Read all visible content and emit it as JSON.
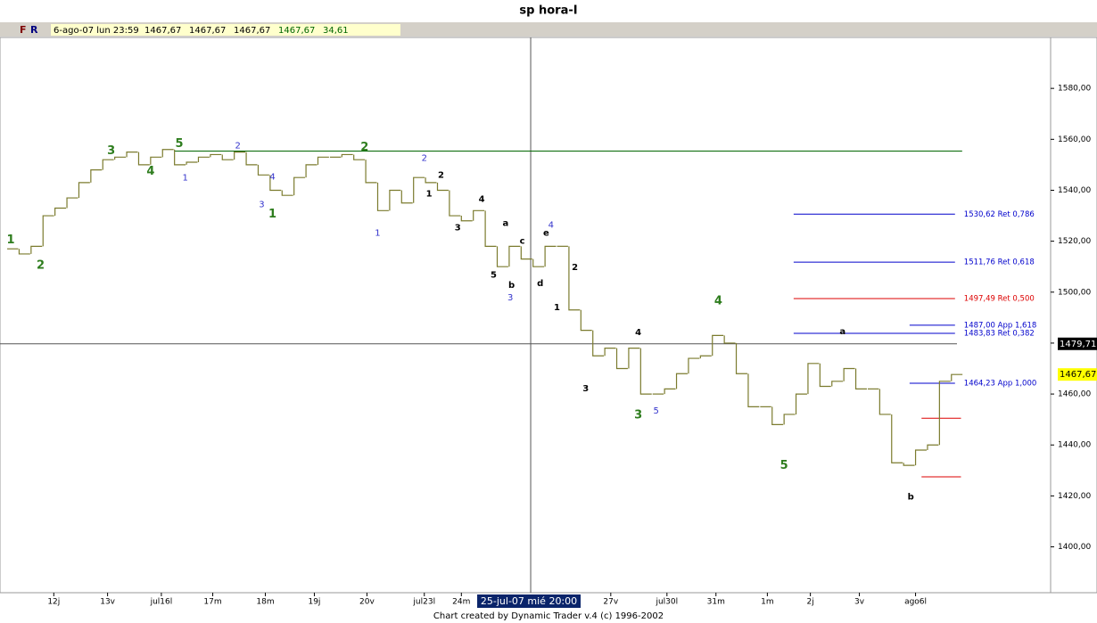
{
  "header": {
    "title": "sp hora-I",
    "buttons": [
      "F",
      "R"
    ],
    "info": [
      "6-ago-07 lun 23:59",
      "1467,67",
      "1467,67",
      "1467,67",
      "1467,67",
      "34,61"
    ]
  },
  "footer": "Chart created by Dynamic Trader v.4  (c) 1996-2002",
  "cursor": {
    "x_label": "25-jul-07 mié 20:00",
    "x": 43.8,
    "y": 1479.71,
    "y_label": "1479,71"
  },
  "chart_data": {
    "type": "step",
    "color": "#7b7b2e",
    "x": [
      0,
      1,
      2,
      3,
      4,
      5,
      6,
      7,
      8,
      9,
      10,
      11,
      12,
      13,
      14,
      15,
      16,
      17,
      18,
      19,
      20,
      21,
      22,
      23,
      24,
      25,
      26,
      27,
      28,
      29,
      30,
      31,
      32,
      33,
      34,
      35,
      36,
      37,
      38,
      39,
      40,
      41,
      42,
      43,
      44,
      45,
      46,
      47,
      48,
      49,
      50,
      51,
      52,
      53,
      54,
      55,
      56,
      57,
      58,
      59,
      60,
      61,
      62,
      63,
      64,
      65,
      66,
      67,
      68,
      69,
      70,
      71,
      72,
      73,
      74,
      75,
      76,
      77,
      78,
      79
    ],
    "values": [
      1517,
      1515,
      1518,
      1530,
      1533,
      1537,
      1543,
      1548,
      1552,
      1553,
      1555,
      1550,
      1553,
      1556,
      1550,
      1551,
      1553,
      1554,
      1552,
      1555,
      1550,
      1546,
      1540,
      1538,
      1545,
      1550,
      1553,
      1553,
      1554,
      1552,
      1543,
      1532,
      1540,
      1535,
      1545,
      1543,
      1540,
      1530,
      1528,
      1532,
      1518,
      1510,
      1518,
      1513,
      1510,
      1518,
      1518,
      1493,
      1485,
      1475,
      1478,
      1470,
      1478,
      1460,
      1460,
      1462,
      1468,
      1474,
      1475,
      1483,
      1480,
      1468,
      1455,
      1455,
      1448,
      1452,
      1460,
      1472,
      1463,
      1465,
      1470,
      1462,
      1462,
      1452,
      1433,
      1432,
      1438,
      1440,
      1465,
      1467.67
    ],
    "last_label": "1467,67",
    "xlim": [
      -0.6,
      87.3
    ],
    "ylim": [
      1382,
      1600
    ],
    "xticks": [
      {
        "value": 3.9,
        "label": "12j"
      },
      {
        "value": 8.4,
        "label": "13v"
      },
      {
        "value": 12.9,
        "label": "jul16l"
      },
      {
        "value": 17.2,
        "label": "17m"
      },
      {
        "value": 21.6,
        "label": "18m"
      },
      {
        "value": 25.7,
        "label": "19j"
      },
      {
        "value": 30.1,
        "label": "20v"
      },
      {
        "value": 34.9,
        "label": "jul23l"
      },
      {
        "value": 38,
        "label": "24m"
      },
      {
        "value": 50.5,
        "label": "27v"
      },
      {
        "value": 55.2,
        "label": "jul30l"
      },
      {
        "value": 59.3,
        "label": "31m"
      },
      {
        "value": 63.6,
        "label": "1m"
      },
      {
        "value": 67.2,
        "label": "2j"
      },
      {
        "value": 71.3,
        "label": "3v"
      },
      {
        "value": 76,
        "label": "ago6l"
      }
    ],
    "yticks": [
      {
        "value": 1400,
        "label": "1400,00"
      },
      {
        "value": 1420,
        "label": "1420,00"
      },
      {
        "value": 1440,
        "label": "1440,00"
      },
      {
        "value": 1460,
        "label": "1460,00"
      },
      {
        "value": 1480,
        "label": "1480,00"
      },
      {
        "value": 1500,
        "label": "1500,00"
      },
      {
        "value": 1520,
        "label": "1520,00"
      },
      {
        "value": 1540,
        "label": "1540,00"
      },
      {
        "value": 1560,
        "label": "1560,00"
      },
      {
        "value": 1580,
        "label": "1580,00"
      }
    ],
    "levels": [
      {
        "value": 1530.62,
        "label": "1530,62 Ret 0,786",
        "color": "#0000cc",
        "from": 65.8,
        "to": 79.3
      },
      {
        "value": 1511.76,
        "label": "1511,76 Ret 0,618",
        "color": "#0000cc",
        "from": 65.8,
        "to": 79.3
      },
      {
        "value": 1497.49,
        "label": "1497,49 Ret 0,500",
        "color": "#dd0000",
        "from": 65.8,
        "to": 79.3
      },
      {
        "value": 1487,
        "label": "1487,00 App 1,618",
        "color": "#0000cc",
        "from": 75.5,
        "to": 79.3
      },
      {
        "value": 1483.83,
        "label": "1483,83 Ret 0,382",
        "color": "#0000cc",
        "from": 65.8,
        "to": 79.3
      },
      {
        "value": 1464.23,
        "label": "1464,23 App 1,000",
        "color": "#0000cc",
        "from": 75.5,
        "to": 79.3
      },
      {
        "value": 1555.4,
        "color": "#006600",
        "from": 14,
        "to": 79.9
      },
      {
        "value": 1450.5,
        "color": "#dd0000",
        "from": 76.5,
        "to": 79.8
      },
      {
        "value": 1427.5,
        "color": "#dd0000",
        "from": 76.5,
        "to": 79.8
      }
    ],
    "annotations": [
      {
        "text": "1",
        "x": 0.3,
        "y": 1520.4,
        "color": "#2e7d1e"
      },
      {
        "text": "2",
        "x": 2.8,
        "y": 1510.5,
        "color": "#2e7d1e"
      },
      {
        "text": "3",
        "x": 8.7,
        "y": 1555.4,
        "color": "#2e7d1e"
      },
      {
        "text": "4",
        "x": 12,
        "y": 1547.4,
        "color": "#2e7d1e"
      },
      {
        "text": "5",
        "x": 14.4,
        "y": 1558.2,
        "color": "#2e7d1e"
      },
      {
        "text": "1",
        "x": 22.2,
        "y": 1530.5,
        "color": "#2e7d1e"
      },
      {
        "text": "2",
        "x": 29.9,
        "y": 1556.8,
        "color": "#2e7d1e"
      },
      {
        "text": "4",
        "x": 59.5,
        "y": 1496.5,
        "color": "#2e7d1e"
      },
      {
        "text": "3",
        "x": 52.8,
        "y": 1451.6,
        "color": "#2e7d1e"
      },
      {
        "text": "5",
        "x": 65,
        "y": 1431.9,
        "color": "#2e7d1e"
      },
      {
        "text": "2",
        "x": 19.3,
        "y": 1557.5,
        "color": "#3333cc"
      },
      {
        "text": "1",
        "x": 14.9,
        "y": 1544.9,
        "color": "#3333cc"
      },
      {
        "text": "3",
        "x": 21.3,
        "y": 1534.4,
        "color": "#3333cc"
      },
      {
        "text": "4",
        "x": 22.2,
        "y": 1545.3,
        "color": "#3333cc"
      },
      {
        "text": "1",
        "x": 31,
        "y": 1523.2,
        "color": "#3333cc"
      },
      {
        "text": "2",
        "x": 34.9,
        "y": 1552.6,
        "color": "#3333cc"
      },
      {
        "text": "4",
        "x": 45.5,
        "y": 1526.3,
        "color": "#3333cc"
      },
      {
        "text": "3",
        "x": 42.1,
        "y": 1497.9,
        "color": "#3333cc"
      },
      {
        "text": "5",
        "x": 54.3,
        "y": 1453.3,
        "color": "#3333cc"
      },
      {
        "text": "1",
        "x": 35.3,
        "y": 1538.6,
        "color": "#000000"
      },
      {
        "text": "2",
        "x": 36.3,
        "y": 1546,
        "color": "#000000"
      },
      {
        "text": "4",
        "x": 39.7,
        "y": 1536.5,
        "color": "#000000"
      },
      {
        "text": "3",
        "x": 37.7,
        "y": 1525.3,
        "color": "#000000"
      },
      {
        "text": "a",
        "x": 41.7,
        "y": 1527,
        "color": "#000000"
      },
      {
        "text": "b",
        "x": 42.2,
        "y": 1502.8,
        "color": "#000000"
      },
      {
        "text": "c",
        "x": 43.1,
        "y": 1520,
        "color": "#000000"
      },
      {
        "text": "d",
        "x": 44.6,
        "y": 1503.5,
        "color": "#000000"
      },
      {
        "text": "e",
        "x": 45.1,
        "y": 1523.2,
        "color": "#000000"
      },
      {
        "text": "5",
        "x": 40.7,
        "y": 1506.7,
        "color": "#000000"
      },
      {
        "text": "2",
        "x": 47.5,
        "y": 1509.8,
        "color": "#000000"
      },
      {
        "text": "1",
        "x": 46,
        "y": 1494,
        "color": "#000000"
      },
      {
        "text": "4",
        "x": 52.8,
        "y": 1484.2,
        "color": "#000000"
      },
      {
        "text": "3",
        "x": 48.4,
        "y": 1462.1,
        "color": "#000000"
      },
      {
        "text": "a",
        "x": 69.9,
        "y": 1484.6,
        "color": "#000000"
      },
      {
        "text": "b",
        "x": 75.6,
        "y": 1419.6,
        "color": "#000000"
      }
    ]
  }
}
